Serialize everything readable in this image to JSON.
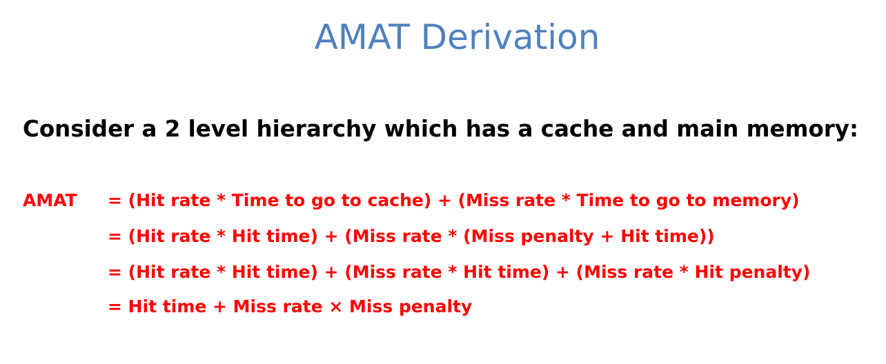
{
  "slide": {
    "title": "AMAT Derivation",
    "subtitle": "Consider a 2 level hierarchy which has a cache and main memory:",
    "equation": {
      "label": "AMAT",
      "lines": [
        "= (Hit rate * Time to go to cache) + (Miss rate *  Time to go to memory)",
        "= (Hit rate * Hit time) + (Miss rate * (Miss penalty + Hit time))",
        "= (Hit rate * Hit time) + (Miss rate * Hit time) + (Miss rate * Hit penalty)",
        "= Hit time + Miss rate × Miss penalty"
      ]
    },
    "colors": {
      "title": "#4f81bd",
      "subtitle": "#000000",
      "equation": "#ff0000"
    }
  }
}
